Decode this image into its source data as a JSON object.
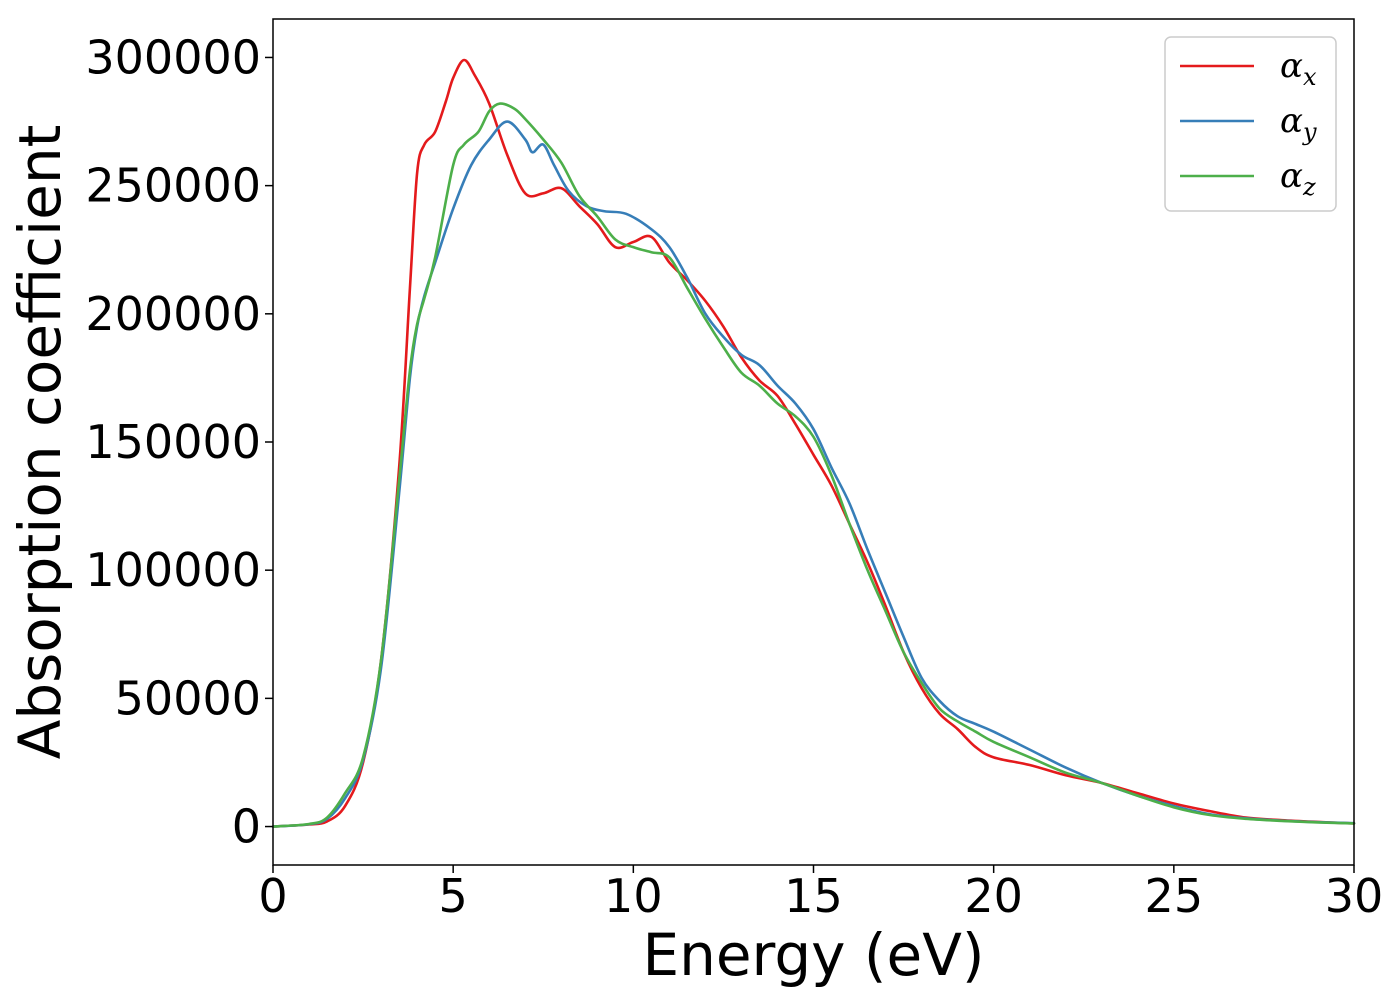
{
  "chart_data": {
    "type": "line",
    "title": "",
    "xlabel": "Energy (eV)",
    "ylabel": "Absorption coefficient",
    "xlim": [
      0,
      30
    ],
    "ylim": [
      -15000,
      315000
    ],
    "xticks": [
      0,
      5,
      10,
      15,
      20,
      25,
      30
    ],
    "yticks": [
      0,
      50000,
      100000,
      150000,
      200000,
      250000,
      300000
    ],
    "xtick_labels": [
      "0",
      "5",
      "10",
      "15",
      "20",
      "25",
      "30"
    ],
    "ytick_labels": [
      "0",
      "50000",
      "100000",
      "150000",
      "200000",
      "250000",
      "300000"
    ],
    "grid": false,
    "legend_position": "top-right",
    "series": [
      {
        "name": "α",
        "name_sub": "x",
        "color": "#e41a1c",
        "x": [
          0,
          1,
          1.5,
          2,
          2.5,
          3,
          3.5,
          3.8,
          4,
          4.2,
          4.5,
          4.8,
          5,
          5.3,
          5.6,
          6,
          6.5,
          7,
          7.5,
          8,
          8.5,
          9,
          9.5,
          10,
          10.5,
          11,
          11.5,
          12,
          12.5,
          13,
          13.5,
          14,
          14.5,
          15,
          15.5,
          16,
          16.5,
          17,
          17.5,
          18,
          18.5,
          19,
          19.5,
          20,
          21,
          22,
          23,
          24,
          25,
          26,
          27,
          28,
          29,
          30
        ],
        "y": [
          0,
          800,
          2000,
          8000,
          25000,
          65000,
          140000,
          210000,
          255000,
          266000,
          271000,
          283000,
          292000,
          299000,
          293000,
          282000,
          262000,
          247000,
          247000,
          249000,
          242000,
          235000,
          226000,
          228000,
          230000,
          220000,
          213000,
          205000,
          195000,
          183000,
          174000,
          168000,
          157000,
          145000,
          133000,
          118000,
          103000,
          86000,
          68000,
          54000,
          44000,
          38000,
          31000,
          27000,
          24000,
          20000,
          17000,
          13000,
          9000,
          6000,
          3500,
          2500,
          1800,
          1200
        ]
      },
      {
        "name": "α",
        "name_sub": "y",
        "color": "#377eb8",
        "x": [
          0,
          1,
          1.5,
          2,
          2.5,
          3,
          3.5,
          3.8,
          4,
          4.2,
          4.5,
          5,
          5.5,
          6,
          6.5,
          7,
          7.2,
          7.5,
          7.8,
          8.2,
          8.7,
          9.2,
          9.8,
          10.5,
          11,
          11.5,
          12,
          12.5,
          13,
          13.5,
          14,
          14.5,
          15,
          15.5,
          16,
          16.5,
          17,
          17.5,
          18,
          18.5,
          19,
          19.5,
          20,
          21,
          22,
          23,
          24,
          25,
          26,
          27,
          28,
          29,
          30
        ],
        "y": [
          0,
          900,
          3000,
          11000,
          26000,
          62000,
          130000,
          175000,
          195000,
          207000,
          220000,
          241000,
          258000,
          268000,
          275000,
          268000,
          263000,
          266000,
          258000,
          248000,
          242000,
          240000,
          239000,
          233000,
          226000,
          214000,
          200000,
          191000,
          184000,
          180000,
          172000,
          165000,
          155000,
          140000,
          126000,
          108000,
          91000,
          74000,
          58000,
          49000,
          43000,
          40000,
          37000,
          30000,
          23000,
          17000,
          12000,
          8000,
          4800,
          3200,
          2300,
          1700,
          1300
        ]
      },
      {
        "name": "α",
        "name_sub": "z",
        "color": "#4daf4a",
        "x": [
          0,
          1,
          1.5,
          2,
          2.5,
          3,
          3.5,
          3.8,
          4,
          4.2,
          4.5,
          5,
          5.3,
          5.7,
          6,
          6.3,
          6.7,
          7,
          7.5,
          8,
          8.5,
          9,
          9.5,
          10,
          10.5,
          11,
          11.5,
          12,
          12.5,
          13,
          13.5,
          14,
          14.5,
          15,
          15.5,
          16,
          16.5,
          17,
          17.5,
          18,
          18.5,
          19,
          19.5,
          20,
          21,
          22,
          23,
          24,
          25,
          26,
          27,
          28,
          29,
          30
        ],
        "y": [
          0,
          1000,
          3500,
          13000,
          27000,
          65000,
          135000,
          178000,
          196000,
          206000,
          222000,
          258000,
          266000,
          271000,
          279000,
          282000,
          280000,
          276000,
          268000,
          259000,
          246000,
          238000,
          229000,
          226000,
          224000,
          222000,
          210000,
          198000,
          187000,
          177000,
          172000,
          165000,
          160000,
          152000,
          137000,
          118000,
          100000,
          84000,
          68000,
          56000,
          46000,
          41000,
          37000,
          33000,
          27000,
          21000,
          17000,
          12000,
          7500,
          4500,
          3000,
          2200,
          1600,
          1200
        ]
      }
    ]
  }
}
